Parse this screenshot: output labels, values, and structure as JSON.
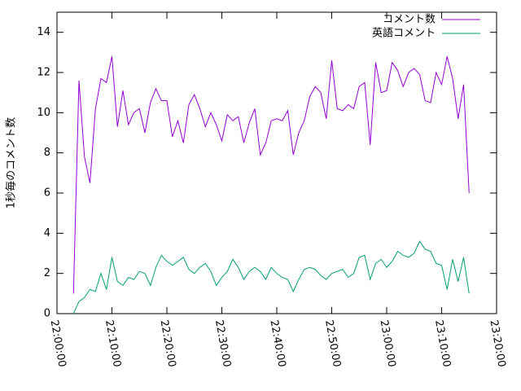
{
  "chart_data": {
    "type": "line",
    "ylabel": "1秒毎のコメント数",
    "x": [
      "22:03:00",
      "22:04:00",
      "22:05:00",
      "22:06:00",
      "22:07:00",
      "22:08:00",
      "22:09:00",
      "22:10:00",
      "22:11:00",
      "22:12:00",
      "22:13:00",
      "22:14:00",
      "22:15:00",
      "22:16:00",
      "22:17:00",
      "22:18:00",
      "22:19:00",
      "22:20:00",
      "22:21:00",
      "22:22:00",
      "22:23:00",
      "22:24:00",
      "22:25:00",
      "22:26:00",
      "22:27:00",
      "22:28:00",
      "22:29:00",
      "22:30:00",
      "22:31:00",
      "22:32:00",
      "22:33:00",
      "22:34:00",
      "22:35:00",
      "22:36:00",
      "22:37:00",
      "22:38:00",
      "22:39:00",
      "22:40:00",
      "22:41:00",
      "22:42:00",
      "22:43:00",
      "22:44:00",
      "22:45:00",
      "22:46:00",
      "22:47:00",
      "22:48:00",
      "22:49:00",
      "22:50:00",
      "22:51:00",
      "22:52:00",
      "22:53:00",
      "22:54:00",
      "22:55:00",
      "22:56:00",
      "22:57:00",
      "22:58:00",
      "22:59:00",
      "23:00:00",
      "23:01:00",
      "23:02:00",
      "23:03:00",
      "23:04:00",
      "23:05:00",
      "23:06:00",
      "23:07:00",
      "23:08:00",
      "23:09:00",
      "23:10:00",
      "23:11:00",
      "23:12:00",
      "23:13:00",
      "23:14:00",
      "23:15:00"
    ],
    "series": [
      {
        "name": "コメント数",
        "color": "#9400d3",
        "values": [
          1.0,
          11.6,
          7.8,
          6.5,
          10.2,
          11.7,
          11.5,
          12.8,
          9.3,
          11.1,
          9.4,
          10.0,
          10.2,
          9.0,
          10.5,
          11.2,
          10.6,
          10.6,
          8.8,
          9.6,
          8.5,
          10.4,
          10.9,
          10.2,
          9.3,
          10.0,
          9.4,
          8.6,
          9.9,
          9.6,
          9.8,
          8.5,
          9.5,
          10.2,
          7.9,
          8.5,
          9.6,
          9.7,
          9.6,
          10.1,
          7.9,
          9.0,
          9.6,
          10.8,
          11.3,
          11.0,
          9.7,
          12.6,
          10.2,
          10.1,
          10.4,
          10.2,
          11.3,
          11.5,
          8.4,
          12.5,
          11.0,
          11.1,
          12.5,
          12.1,
          11.3,
          12.0,
          12.2,
          11.9,
          10.6,
          10.5,
          12.0,
          11.4,
          12.8,
          11.7,
          9.7,
          11.4,
          6.0
        ]
      },
      {
        "name": "英語コメント",
        "color": "#009e73",
        "values": [
          0.0,
          0.6,
          0.8,
          1.2,
          1.1,
          2.0,
          1.2,
          2.8,
          1.6,
          1.4,
          1.8,
          1.7,
          2.1,
          2.0,
          1.4,
          2.3,
          2.9,
          2.6,
          2.4,
          2.6,
          2.8,
          2.2,
          2.0,
          2.3,
          2.5,
          2.1,
          1.4,
          1.8,
          2.1,
          2.7,
          2.3,
          1.7,
          2.1,
          2.3,
          2.1,
          1.7,
          2.3,
          2.0,
          1.8,
          1.7,
          1.1,
          1.7,
          2.2,
          2.3,
          2.2,
          1.9,
          1.7,
          2.0,
          2.1,
          2.2,
          1.8,
          2.0,
          2.8,
          2.9,
          1.7,
          2.5,
          2.7,
          2.3,
          2.6,
          3.1,
          2.9,
          2.8,
          3.0,
          3.6,
          3.2,
          3.1,
          2.5,
          2.4,
          1.2,
          2.7,
          1.6,
          2.8,
          1.0
        ]
      }
    ],
    "xlim": [
      "22:00:00",
      "23:20:00"
    ],
    "xticks": [
      "22:00:00",
      "22:10:00",
      "22:20:00",
      "22:30:00",
      "22:40:00",
      "22:50:00",
      "23:00:00",
      "23:10:00",
      "23:20:00"
    ],
    "ylim": [
      0,
      15
    ],
    "yticks": [
      0,
      2,
      4,
      6,
      8,
      10,
      12,
      14
    ],
    "legend": "upper right"
  }
}
